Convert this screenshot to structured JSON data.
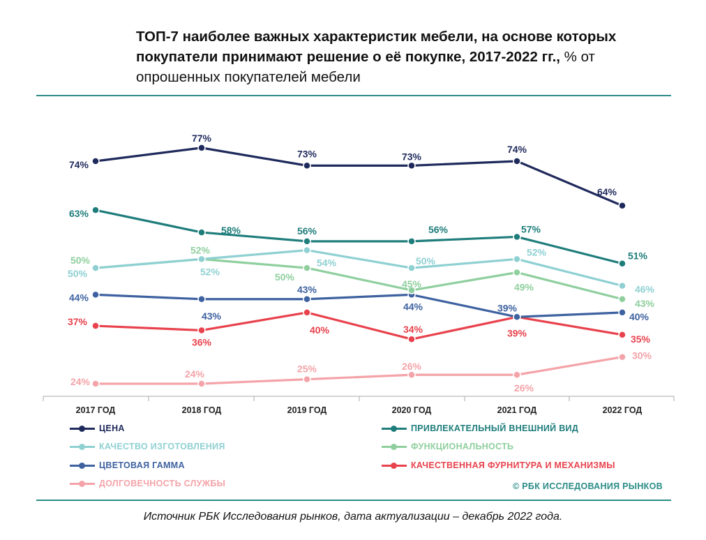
{
  "title": {
    "bold": "ТОП-7 наиболее важных характеристик мебели, на основе которых покупатели принимают решение о её покупке, 2017-2022 гг.,",
    "normal": " % от опрошенных покупателей мебели"
  },
  "colors": {
    "rule": "#2a8c87",
    "copyright": "#2a8c87"
  },
  "chart_data": {
    "type": "line",
    "title": "ТОП-7 наиболее важных характеристик мебели, на основе которых покупатели принимают решение о её покупке, 2017-2022 гг., % от опрошенных покупателей мебели",
    "categories": [
      "2017 ГОД",
      "2018 ГОД",
      "2019 ГОД",
      "2020 ГОД",
      "2021 ГОД",
      "2022 ГОД"
    ],
    "ylabel": "%",
    "ylim": [
      20,
      80
    ],
    "grid": false,
    "legend_position": "bottom",
    "series": [
      {
        "name": "ЦЕНА",
        "color": "#1f2a5c",
        "values": [
          74,
          77,
          73,
          73,
          74,
          64
        ],
        "labels": [
          "74%",
          "77%",
          "73%",
          "73%",
          "74%",
          "64%"
        ]
      },
      {
        "name": "ПРИВЛЕКАТЕЛЬНЫЙ ВНЕШНИЙ ВИД",
        "color": "#1e7d7b",
        "values": [
          63,
          58,
          56,
          56,
          57,
          51
        ],
        "labels": [
          "63%",
          "58%",
          "56%",
          "56%",
          "57%",
          "51%"
        ]
      },
      {
        "name": "КАЧЕСТВО ИЗГОТОВЛЕНИЯ",
        "color": "#8fd0d2",
        "values": [
          50,
          52,
          54,
          50,
          52,
          46
        ],
        "labels": [
          "50%",
          "52%",
          "54%",
          "50%",
          "52%",
          "46%"
        ]
      },
      {
        "name": "ФУНКЦИОНАЛЬНОСТЬ",
        "color": "#8fcf9e",
        "values": [
          50,
          52,
          50,
          45,
          49,
          43
        ],
        "labels": [
          "50%",
          "52%",
          "50%",
          "45%",
          "49%",
          "43%"
        ]
      },
      {
        "name": "ЦВЕТОВАЯ ГАММА",
        "color": "#3e62a0",
        "values": [
          44,
          43,
          43,
          44,
          39,
          40
        ],
        "labels": [
          "44%",
          "43%",
          "43%",
          "44%",
          "39%",
          "40%"
        ]
      },
      {
        "name": "КАЧЕСТВЕННАЯ ФУРНИТУРА И МЕХАНИЗМЫ",
        "color": "#e8424d",
        "values": [
          37,
          36,
          40,
          34,
          39,
          35
        ],
        "labels": [
          "37%",
          "36%",
          "40%",
          "34%",
          "39%",
          "35%"
        ]
      },
      {
        "name": "ДОЛГОВЕЧНОСТЬ СЛУЖБЫ",
        "color": "#f4a3a8",
        "values": [
          24,
          24,
          25,
          26,
          26,
          30
        ],
        "labels": [
          "24%",
          "24%",
          "25%",
          "26%",
          "26%",
          "30%"
        ]
      }
    ]
  },
  "copyright": "© РБК ИССЛЕДОВАНИЯ РЫНКОВ",
  "source": "Источник РБК Исследования рынков, дата актуализации – декабрь 2022 года."
}
